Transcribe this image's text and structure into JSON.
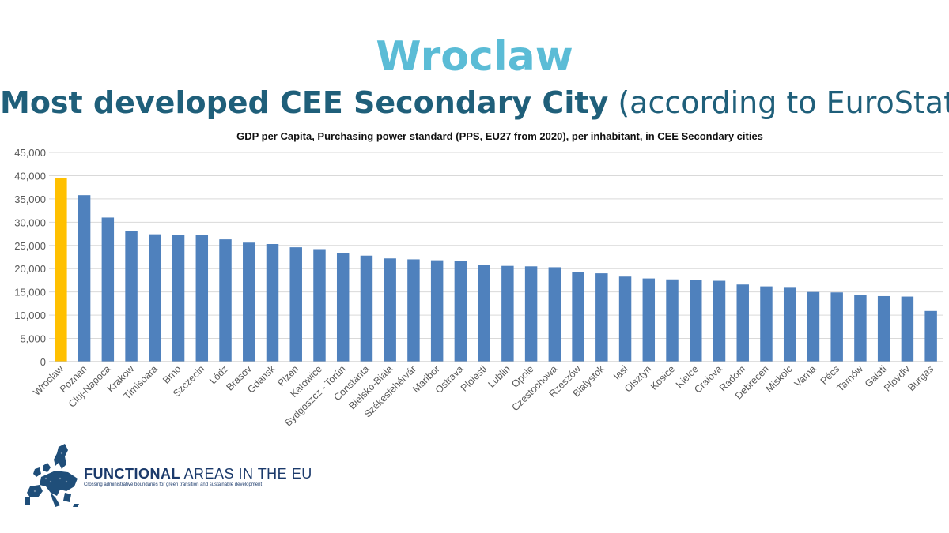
{
  "slide": {
    "title": "Wroclaw",
    "subtitle_bold": "Most developed CEE Secondary City",
    "subtitle_rest": " (according to EuroStat)",
    "title_color": "#5bbcd6",
    "subtitle_color": "#1f5f7a"
  },
  "footer": {
    "brand_bold": "FUNCTIONAL",
    "brand_rest": " AREAS IN THE EU",
    "tagline": "Crossing administrative boundaries for green transition and sustainable development",
    "logo_icon": "eu-map-icon",
    "brand_color": "#1b3a6b"
  },
  "chart_data": {
    "type": "bar",
    "title": "GDP per Capita, Purchasing power standard (PPS, EU27 from 2020), per inhabitant, in CEE Secondary cities",
    "categories": [
      "Wroclaw",
      "Poznan",
      "Cluj-Napoca",
      "Kraków",
      "Timisoara",
      "Brno",
      "Szczecin",
      "Lódz",
      "Brasov",
      "Gdansk",
      "Plzen",
      "Katowice",
      "Bydgoszcz - Torún",
      "Constanta",
      "Bielsko-Biala",
      "Székesfehérvár",
      "Maribor",
      "Ostrava",
      "Ploiesti",
      "Lublin",
      "Opole",
      "Czestochowa",
      "Rzeszów",
      "Bialystok",
      "Iasi",
      "Olsztyn",
      "Kosice",
      "Kielce",
      "Craiova",
      "Radom",
      "Debrecen",
      "Miskolc",
      "Varna",
      "Pécs",
      "Tarnów",
      "Galati",
      "Plovdiv",
      "Burgas"
    ],
    "values": [
      39500,
      35800,
      31000,
      28100,
      27400,
      27300,
      27300,
      26300,
      25600,
      25300,
      24600,
      24200,
      23300,
      22800,
      22200,
      22000,
      21800,
      21600,
      20800,
      20600,
      20500,
      20300,
      19300,
      19000,
      18300,
      17900,
      17700,
      17600,
      17400,
      16600,
      16200,
      15900,
      15000,
      14900,
      14400,
      14100,
      14000,
      10900
    ],
    "highlight_index": 0,
    "highlight_color": "#ffc000",
    "bar_color": "#4f81bd",
    "ylim": [
      0,
      45000
    ],
    "yticks": [
      "0",
      "5,000",
      "10,000",
      "15,000",
      "20,000",
      "25,000",
      "30,000",
      "35,000",
      "40,000",
      "45,000"
    ],
    "xlabel": "",
    "ylabel": "",
    "grid": true,
    "legend": "none"
  }
}
